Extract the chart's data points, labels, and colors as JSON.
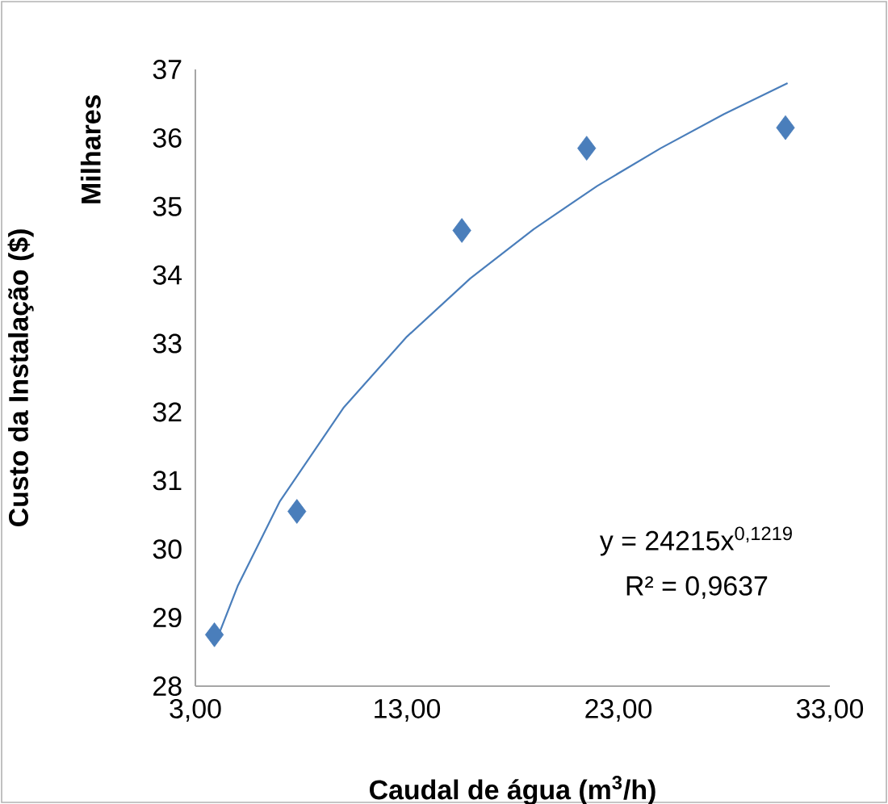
{
  "chart_data": {
    "type": "scatter",
    "xlabel": "Caudal de água (m$^{3}$/h)",
    "ylabel": "Custo da Instalação ($)",
    "annotations": [
      "Milhares",
      "y = 24215x$^{0,1219}$",
      "R² = 0,9637"
    ],
    "series": [
      {
        "color": "#4a7ebb",
        "marker": "diamond",
        "x": [
          3.9,
          7.8,
          15.6,
          21.5,
          30.9
        ],
        "values": [
          28.75,
          30.55,
          34.65,
          35.85,
          36.15
        ]
      },
      {
        "type": "line",
        "color": "#4a7ebb",
        "marker": "none",
        "x": [
          3.9,
          5,
          7,
          10,
          13,
          16,
          19,
          22,
          25,
          28,
          31
        ],
        "values": [
          28.59,
          29.46,
          30.7,
          32.06,
          33.1,
          33.95,
          34.67,
          35.3,
          35.85,
          36.35,
          36.8
        ]
      }
    ],
    "xlim": [
      3,
      33
    ],
    "ylim": [
      28,
      37
    ],
    "xticks": [
      {
        "value": 3,
        "label": "3,00"
      },
      {
        "value": 13,
        "label": "13,00"
      },
      {
        "value": 23,
        "label": "23,00"
      },
      {
        "value": 33,
        "label": "33,00"
      }
    ],
    "yticks": [
      28,
      29,
      30,
      31,
      32,
      33,
      34,
      35,
      36,
      37
    ]
  }
}
